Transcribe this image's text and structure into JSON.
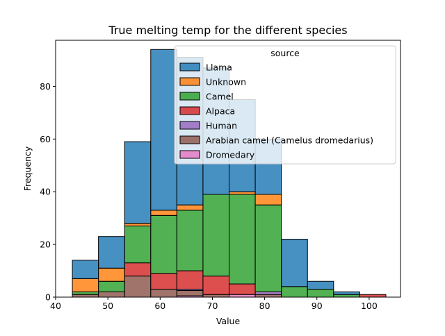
{
  "chart_data": {
    "type": "bar",
    "stacked": true,
    "title": "True melting temp for the different species",
    "xlabel": "Value",
    "ylabel": "Frequency",
    "xlim": [
      40,
      106
    ],
    "ylim": [
      0,
      97.5
    ],
    "xticks": [
      40,
      50,
      60,
      70,
      80,
      90,
      100
    ],
    "yticks": [
      0,
      20,
      40,
      60,
      80
    ],
    "bin_edges": [
      43.2,
      48.2,
      53.2,
      58.2,
      63.2,
      68.2,
      73.2,
      78.2,
      83.2,
      88.2,
      93.2,
      98.2,
      103.2
    ],
    "legend": {
      "title": "source",
      "location": "upper right"
    },
    "series": [
      {
        "name": "Dromedary",
        "color": "#e377c2",
        "values": [
          0,
          0,
          0,
          0,
          0.5,
          0,
          1,
          0,
          0,
          0,
          0,
          0
        ]
      },
      {
        "name": "Arabian camel (Camelus dromedarius)",
        "color": "#8c564b",
        "values": [
          1,
          2,
          8,
          3,
          2,
          1,
          0,
          1,
          0,
          0,
          0,
          0
        ]
      },
      {
        "name": "Human",
        "color": "#9467bd",
        "values": [
          0,
          0,
          0,
          0,
          0.5,
          0,
          0,
          1,
          0,
          0,
          0,
          0
        ]
      },
      {
        "name": "Alpaca",
        "color": "#d62728",
        "values": [
          0,
          0,
          5,
          6,
          7,
          7,
          4,
          0,
          0,
          0,
          0,
          1
        ]
      },
      {
        "name": "Camel",
        "color": "#2ca02c",
        "values": [
          1,
          4,
          14,
          22,
          23,
          31,
          34,
          33,
          4,
          3,
          1,
          0
        ]
      },
      {
        "name": "Unknown",
        "color": "#ff7f0e",
        "values": [
          5,
          5,
          1,
          2,
          2,
          0,
          1,
          4,
          0,
          0,
          0,
          0
        ]
      },
      {
        "name": "Llama",
        "color": "#1f77b4",
        "values": [
          7,
          12,
          31,
          61,
          56,
          48,
          35,
          21,
          18,
          3,
          1,
          0
        ]
      }
    ]
  }
}
